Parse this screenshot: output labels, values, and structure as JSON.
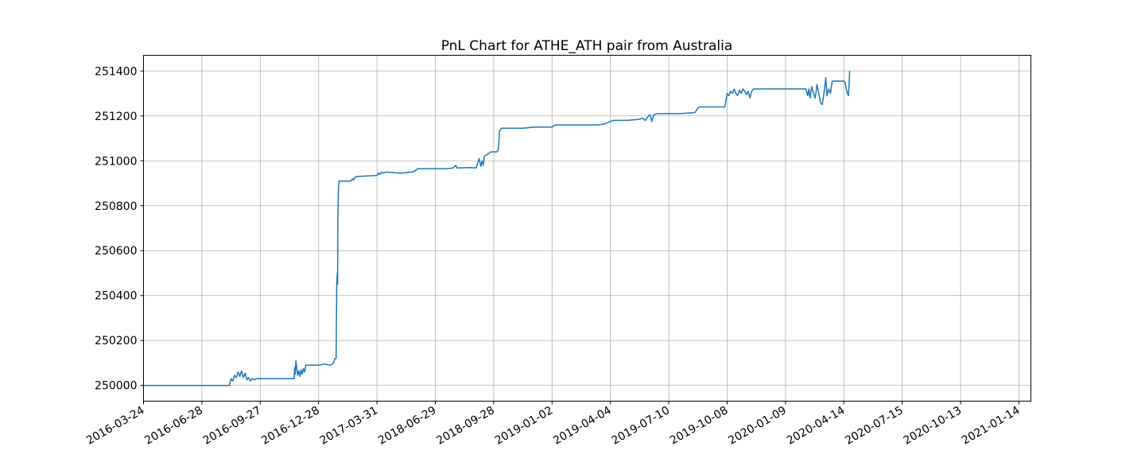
{
  "chart_data": {
    "type": "line",
    "title": "PnL Chart for ATHE_ATH pair from Australia",
    "xlabel": "",
    "ylabel": "",
    "grid": true,
    "line_color": "#1f77b4",
    "x_ticks": [
      "2016-03-24",
      "2016-06-28",
      "2016-09-27",
      "2016-12-28",
      "2017-03-31",
      "2018-06-29",
      "2018-09-28",
      "2019-01-02",
      "2019-04-04",
      "2019-07-10",
      "2019-10-08",
      "2020-01-09",
      "2020-04-14",
      "2020-07-15",
      "2020-10-13",
      "2021-01-14"
    ],
    "y_ticks": [
      "250000",
      "250200",
      "250400",
      "250600",
      "250800",
      "251000",
      "251200",
      "251400"
    ],
    "ylim": [
      249930,
      251470
    ],
    "series": [
      {
        "values": [
          [
            0.0,
            250000
          ],
          [
            1.47,
            250000
          ],
          [
            1.5,
            250030
          ],
          [
            1.53,
            250020
          ],
          [
            1.56,
            250045
          ],
          [
            1.59,
            250035
          ],
          [
            1.62,
            250060
          ],
          [
            1.65,
            250040
          ],
          [
            1.68,
            250065
          ],
          [
            1.71,
            250035
          ],
          [
            1.74,
            250055
          ],
          [
            1.77,
            250025
          ],
          [
            1.8,
            250035
          ],
          [
            1.83,
            250020
          ],
          [
            1.86,
            250030
          ],
          [
            1.9,
            250025
          ],
          [
            1.93,
            250030
          ],
          [
            2.5,
            250030
          ],
          [
            2.58,
            250030
          ],
          [
            2.59,
            250080
          ],
          [
            2.6,
            250050
          ],
          [
            2.61,
            250110
          ],
          [
            2.63,
            250070
          ],
          [
            2.64,
            250045
          ],
          [
            2.66,
            250065
          ],
          [
            2.68,
            250040
          ],
          [
            2.7,
            250070
          ],
          [
            2.72,
            250050
          ],
          [
            2.74,
            250075
          ],
          [
            2.76,
            250060
          ],
          [
            2.78,
            250090
          ],
          [
            3.0,
            250090
          ],
          [
            3.1,
            250095
          ],
          [
            3.2,
            250090
          ],
          [
            3.25,
            250100
          ],
          [
            3.28,
            250120
          ],
          [
            3.3,
            250120
          ],
          [
            3.31,
            250450
          ],
          [
            3.32,
            250500
          ],
          [
            3.325,
            250450
          ],
          [
            3.33,
            250750
          ],
          [
            3.34,
            250880
          ],
          [
            3.35,
            250910
          ],
          [
            3.55,
            250910
          ],
          [
            3.58,
            250920
          ],
          [
            3.6,
            250915
          ],
          [
            3.62,
            250925
          ],
          [
            3.65,
            250930
          ],
          [
            4.0,
            250935
          ],
          [
            4.02,
            250945
          ],
          [
            4.05,
            250940
          ],
          [
            4.08,
            250950
          ],
          [
            4.11,
            250945
          ],
          [
            4.15,
            250950
          ],
          [
            4.4,
            250945
          ],
          [
            4.6,
            250950
          ],
          [
            4.65,
            250955
          ],
          [
            4.7,
            250965
          ],
          [
            5.0,
            250965
          ],
          [
            5.2,
            250965
          ],
          [
            5.3,
            250968
          ],
          [
            5.35,
            250980
          ],
          [
            5.37,
            250968
          ],
          [
            5.6,
            250970
          ],
          [
            5.7,
            250968
          ],
          [
            5.75,
            251010
          ],
          [
            5.78,
            250975
          ],
          [
            5.8,
            251000
          ],
          [
            5.82,
            250980
          ],
          [
            5.84,
            251020
          ],
          [
            5.86,
            251025
          ],
          [
            5.9,
            251030
          ],
          [
            5.95,
            251040
          ],
          [
            6.05,
            251040
          ],
          [
            6.08,
            251050
          ],
          [
            6.1,
            251130
          ],
          [
            6.13,
            251145
          ],
          [
            6.5,
            251145
          ],
          [
            6.7,
            251150
          ],
          [
            7.0,
            251150
          ],
          [
            7.05,
            251160
          ],
          [
            7.6,
            251160
          ],
          [
            7.8,
            251160
          ],
          [
            7.9,
            251165
          ],
          [
            8.0,
            251175
          ],
          [
            8.05,
            251180
          ],
          [
            8.3,
            251180
          ],
          [
            8.5,
            251185
          ],
          [
            8.55,
            251190
          ],
          [
            8.6,
            251180
          ],
          [
            8.65,
            251200
          ],
          [
            8.68,
            251205
          ],
          [
            8.71,
            251175
          ],
          [
            8.74,
            251205
          ],
          [
            8.8,
            251210
          ],
          [
            9.0,
            251210
          ],
          [
            9.2,
            251210
          ],
          [
            9.45,
            251215
          ],
          [
            9.5,
            251235
          ],
          [
            9.52,
            251240
          ],
          [
            9.96,
            251240
          ],
          [
            9.98,
            251270
          ],
          [
            10.0,
            251300
          ],
          [
            10.03,
            251290
          ],
          [
            10.06,
            251310
          ],
          [
            10.09,
            251300
          ],
          [
            10.12,
            251320
          ],
          [
            10.15,
            251300
          ],
          [
            10.18,
            251290
          ],
          [
            10.21,
            251315
          ],
          [
            10.24,
            251300
          ],
          [
            10.27,
            251320
          ],
          [
            10.3,
            251310
          ],
          [
            10.33,
            251295
          ],
          [
            10.36,
            251310
          ],
          [
            10.39,
            251280
          ],
          [
            10.42,
            251310
          ],
          [
            10.45,
            251320
          ],
          [
            10.6,
            251320
          ],
          [
            10.8,
            251320
          ],
          [
            11.0,
            251320
          ],
          [
            11.2,
            251320
          ],
          [
            11.35,
            251320
          ],
          [
            11.38,
            251290
          ],
          [
            11.4,
            251320
          ],
          [
            11.42,
            251280
          ],
          [
            11.45,
            251330
          ],
          [
            11.48,
            251300
          ],
          [
            11.51,
            251280
          ],
          [
            11.54,
            251340
          ],
          [
            11.57,
            251300
          ],
          [
            11.6,
            251260
          ],
          [
            11.63,
            251250
          ],
          [
            11.66,
            251300
          ],
          [
            11.69,
            251370
          ],
          [
            11.71,
            251290
          ],
          [
            11.74,
            251320
          ],
          [
            11.77,
            251300
          ],
          [
            11.8,
            251355
          ],
          [
            11.83,
            251355
          ],
          [
            11.9,
            251355
          ],
          [
            11.95,
            251355
          ],
          [
            12.0,
            251355
          ],
          [
            12.02,
            251350
          ],
          [
            12.04,
            251320
          ],
          [
            12.06,
            251300
          ],
          [
            12.08,
            251290
          ],
          [
            12.1,
            251400
          ]
        ]
      }
    ]
  }
}
